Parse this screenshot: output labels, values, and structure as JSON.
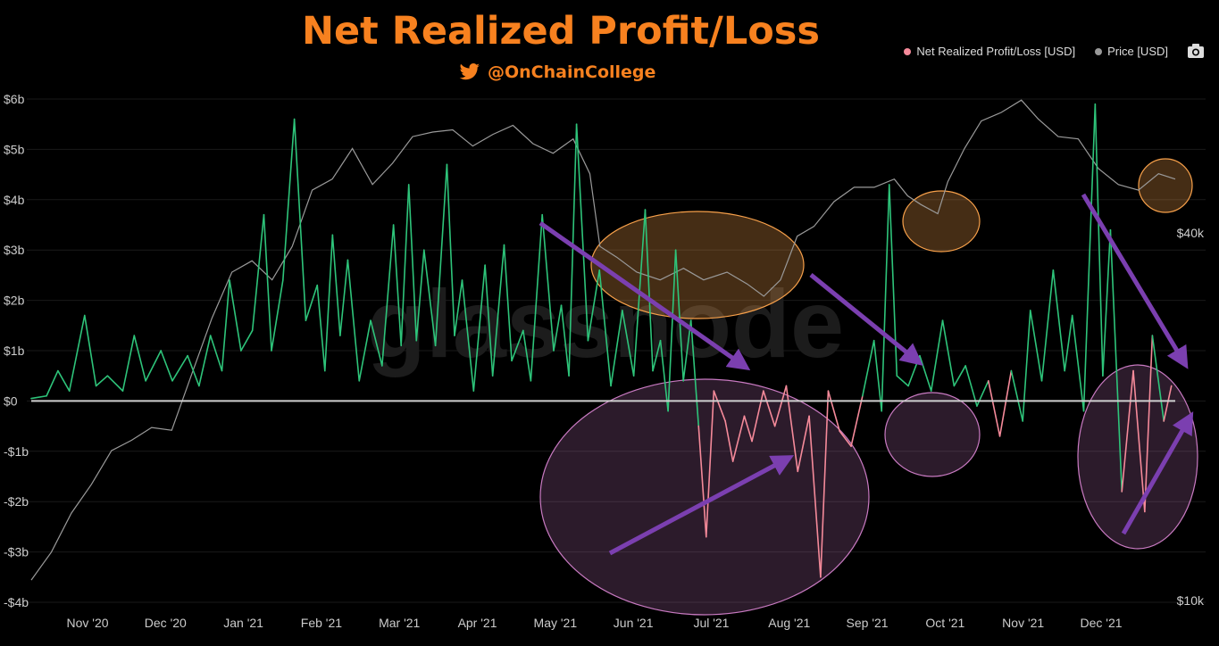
{
  "header": {
    "title": "Net Realized Profit/Loss",
    "handle": "@OnChainCollege"
  },
  "legend": {
    "items": [
      {
        "label": "Net Realized Profit/Loss [USD]",
        "color": "#f58a9a"
      },
      {
        "label": "Price [USD]",
        "color": "#999999"
      }
    ]
  },
  "watermark": "glassnode",
  "colors": {
    "profit": "#2ec47a",
    "loss": "#f58a9a",
    "price": "#9a9a9a",
    "zero_line": "#cfcfcf",
    "arrow": "#7b3fb0",
    "orange_highlight": "#f7a04a",
    "pink_highlight": "#c97ac2"
  },
  "chart_data": {
    "type": "line",
    "title": "Net Realized Profit/Loss",
    "y_left": {
      "ticks": [
        {
          "value": 6,
          "label": "$6b"
        },
        {
          "value": 5,
          "label": "$5b"
        },
        {
          "value": 4,
          "label": "$4b"
        },
        {
          "value": 3,
          "label": "$3b"
        },
        {
          "value": 2,
          "label": "$2b"
        },
        {
          "value": 1,
          "label": "$1b"
        },
        {
          "value": 0,
          "label": "$0"
        },
        {
          "value": -1,
          "label": "-$1b"
        },
        {
          "value": -2,
          "label": "-$2b"
        },
        {
          "value": -3,
          "label": "-$3b"
        },
        {
          "value": -4,
          "label": "-$4b"
        }
      ],
      "range": [
        -4,
        6
      ],
      "unit": "billion USD"
    },
    "y_right": {
      "ticks": [
        {
          "value": 40000,
          "label": "$40k"
        },
        {
          "value": 10000,
          "label": "$10k"
        }
      ],
      "scale": "log",
      "range": [
        10000,
        74000
      ]
    },
    "x_axis": {
      "range_months": [
        -0.15,
        14.0
      ],
      "ticks": [
        {
          "value": 0.4,
          "label": "Nov '20"
        },
        {
          "value": 1.4,
          "label": "Dec '20"
        },
        {
          "value": 2.4,
          "label": "Jan '21"
        },
        {
          "value": 3.4,
          "label": "Feb '21"
        },
        {
          "value": 4.4,
          "label": "Mar '21"
        },
        {
          "value": 5.4,
          "label": "Apr '21"
        },
        {
          "value": 6.4,
          "label": "May '21"
        },
        {
          "value": 7.4,
          "label": "Jun '21"
        },
        {
          "value": 8.4,
          "label": "Jul '21"
        },
        {
          "value": 9.4,
          "label": "Aug '21"
        },
        {
          "value": 10.4,
          "label": "Sep '21"
        },
        {
          "value": 11.4,
          "label": "Oct '21"
        },
        {
          "value": 12.4,
          "label": "Nov '21"
        },
        {
          "value": 13.4,
          "label": "Dec '21"
        }
      ]
    },
    "series": [
      {
        "name": "Net Realized Profit/Loss [USD]",
        "unit": "billion USD",
        "points": [
          [
            0.0,
            0.05
          ],
          [
            0.2,
            0.1
          ],
          [
            0.35,
            0.6
          ],
          [
            0.5,
            0.2
          ],
          [
            0.7,
            1.7
          ],
          [
            0.85,
            0.3
          ],
          [
            1.0,
            0.5
          ],
          [
            1.2,
            0.2
          ],
          [
            1.35,
            1.3
          ],
          [
            1.5,
            0.4
          ],
          [
            1.7,
            1.0
          ],
          [
            1.85,
            0.4
          ],
          [
            2.05,
            0.9
          ],
          [
            2.2,
            0.3
          ],
          [
            2.35,
            1.3
          ],
          [
            2.5,
            0.6
          ],
          [
            2.6,
            2.4
          ],
          [
            2.75,
            1.0
          ],
          [
            2.9,
            1.4
          ],
          [
            3.05,
            3.7
          ],
          [
            3.15,
            1.0
          ],
          [
            3.3,
            2.4
          ],
          [
            3.45,
            5.6
          ],
          [
            3.6,
            1.6
          ],
          [
            3.75,
            2.3
          ],
          [
            3.85,
            0.6
          ],
          [
            3.95,
            3.3
          ],
          [
            4.05,
            1.3
          ],
          [
            4.15,
            2.8
          ],
          [
            4.3,
            0.4
          ],
          [
            4.45,
            1.6
          ],
          [
            4.6,
            0.7
          ],
          [
            4.75,
            3.5
          ],
          [
            4.85,
            1.1
          ],
          [
            4.95,
            4.3
          ],
          [
            5.05,
            1.2
          ],
          [
            5.15,
            3.0
          ],
          [
            5.3,
            1.1
          ],
          [
            5.45,
            4.7
          ],
          [
            5.55,
            1.3
          ],
          [
            5.65,
            2.4
          ],
          [
            5.8,
            0.2
          ],
          [
            5.95,
            2.7
          ],
          [
            6.05,
            0.5
          ],
          [
            6.2,
            3.1
          ],
          [
            6.3,
            0.8
          ],
          [
            6.45,
            1.4
          ],
          [
            6.55,
            0.4
          ],
          [
            6.7,
            3.7
          ],
          [
            6.85,
            1.0
          ],
          [
            6.95,
            1.9
          ],
          [
            7.05,
            0.5
          ],
          [
            7.15,
            5.5
          ],
          [
            7.3,
            1.2
          ],
          [
            7.45,
            2.6
          ],
          [
            7.6,
            0.3
          ],
          [
            7.75,
            1.8
          ],
          [
            7.9,
            0.5
          ],
          [
            8.05,
            3.8
          ],
          [
            8.15,
            0.6
          ],
          [
            8.25,
            1.2
          ],
          [
            8.35,
            -0.2
          ],
          [
            8.45,
            3.0
          ],
          [
            8.55,
            0.4
          ],
          [
            8.65,
            1.6
          ],
          [
            8.75,
            -0.5
          ],
          [
            8.85,
            -2.7
          ],
          [
            8.95,
            0.2
          ],
          [
            9.1,
            -0.4
          ],
          [
            9.2,
            -1.2
          ],
          [
            9.35,
            -0.3
          ],
          [
            9.45,
            -0.8
          ],
          [
            9.6,
            0.2
          ],
          [
            9.75,
            -0.5
          ],
          [
            9.9,
            0.3
          ],
          [
            10.05,
            -1.4
          ],
          [
            10.2,
            -0.3
          ],
          [
            10.35,
            -3.5
          ],
          [
            10.45,
            0.2
          ],
          [
            10.6,
            -0.6
          ],
          [
            10.75,
            -0.9
          ],
          [
            10.9,
            0.1
          ],
          [
            11.05,
            1.2
          ],
          [
            11.15,
            -0.2
          ],
          [
            11.25,
            4.3
          ],
          [
            11.35,
            0.5
          ],
          [
            11.5,
            0.3
          ],
          [
            11.65,
            0.9
          ],
          [
            11.8,
            0.2
          ],
          [
            11.95,
            1.6
          ],
          [
            12.1,
            0.3
          ],
          [
            12.25,
            0.7
          ],
          [
            12.4,
            -0.1
          ],
          [
            12.55,
            0.4
          ],
          [
            12.7,
            -0.7
          ],
          [
            12.85,
            0.6
          ],
          [
            13.0,
            -0.4
          ],
          [
            13.1,
            1.8
          ],
          [
            13.25,
            0.4
          ],
          [
            13.4,
            2.6
          ],
          [
            13.55,
            0.6
          ],
          [
            13.65,
            1.7
          ],
          [
            13.8,
            -0.2
          ],
          [
            13.95,
            5.9
          ],
          [
            14.05,
            0.5
          ],
          [
            14.15,
            3.4
          ],
          [
            14.3,
            -1.8
          ],
          [
            14.45,
            0.6
          ],
          [
            14.6,
            -2.2
          ],
          [
            14.7,
            1.3
          ],
          [
            14.85,
            -0.4
          ],
          [
            14.95,
            0.3
          ]
        ]
      },
      {
        "name": "Price [USD]",
        "unit": "USD",
        "points": [
          [
            0.0,
            10800
          ],
          [
            0.3,
            12000
          ],
          [
            0.6,
            13900
          ],
          [
            0.9,
            15500
          ],
          [
            1.2,
            17600
          ],
          [
            1.5,
            18300
          ],
          [
            1.8,
            19200
          ],
          [
            2.1,
            19000
          ],
          [
            2.4,
            23500
          ],
          [
            2.7,
            29000
          ],
          [
            3.0,
            34500
          ],
          [
            3.3,
            36000
          ],
          [
            3.6,
            33500
          ],
          [
            3.9,
            38000
          ],
          [
            4.2,
            47000
          ],
          [
            4.5,
            49000
          ],
          [
            4.8,
            55000
          ],
          [
            5.1,
            48000
          ],
          [
            5.4,
            52000
          ],
          [
            5.7,
            57500
          ],
          [
            6.0,
            58500
          ],
          [
            6.3,
            59000
          ],
          [
            6.6,
            55500
          ],
          [
            6.9,
            58000
          ],
          [
            7.2,
            60000
          ],
          [
            7.5,
            56000
          ],
          [
            7.8,
            54000
          ],
          [
            8.1,
            57000
          ],
          [
            8.35,
            50000
          ],
          [
            8.5,
            38000
          ],
          [
            8.75,
            36500
          ],
          [
            9.05,
            34500
          ],
          [
            9.4,
            33500
          ],
          [
            9.75,
            35000
          ],
          [
            10.05,
            33500
          ],
          [
            10.4,
            34500
          ],
          [
            10.7,
            33000
          ],
          [
            10.95,
            31500
          ],
          [
            11.2,
            33500
          ],
          [
            11.45,
            39500
          ],
          [
            11.7,
            41000
          ],
          [
            12.0,
            45000
          ],
          [
            12.3,
            47500
          ],
          [
            12.6,
            47500
          ],
          [
            12.9,
            49000
          ],
          [
            13.1,
            46000
          ],
          [
            13.3,
            44500
          ],
          [
            13.55,
            43000
          ],
          [
            13.7,
            48500
          ],
          [
            13.95,
            55000
          ],
          [
            14.2,
            61000
          ],
          [
            14.5,
            63000
          ],
          [
            14.8,
            66000
          ],
          [
            15.05,
            61500
          ],
          [
            15.35,
            57500
          ],
          [
            15.65,
            57000
          ],
          [
            15.95,
            51000
          ],
          [
            16.25,
            48000
          ],
          [
            16.55,
            47000
          ],
          [
            16.85,
            50000
          ],
          [
            17.1,
            49000
          ]
        ]
      }
    ]
  }
}
